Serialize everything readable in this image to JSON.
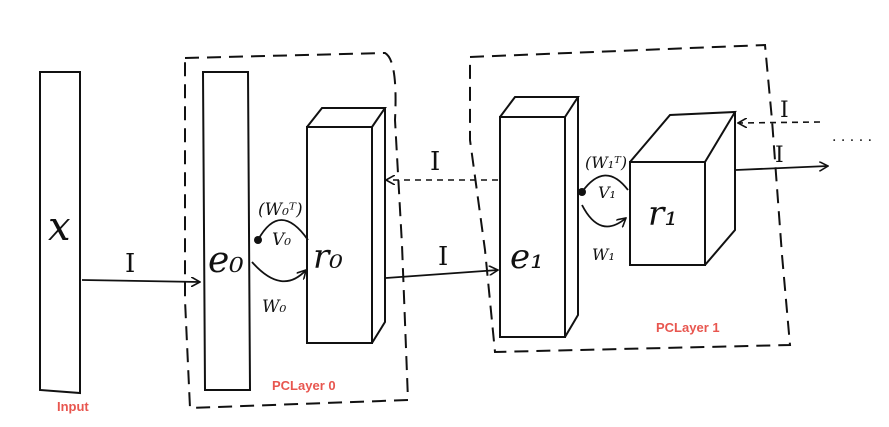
{
  "labels": {
    "input": "Input",
    "pclayer0": "PCLayer 0",
    "pclayer1": "PCLayer 1"
  },
  "symbols": {
    "x": "x",
    "e0": "e₀",
    "r0": "r₀",
    "v0": "V₀",
    "w0": "W₀",
    "w0t": "(W₀ᵀ)",
    "e1": "e₁",
    "r1": "r₁",
    "v1": "V₁",
    "w1": "W₁",
    "w1t": "(W₁ᵀ)",
    "i": "I",
    "dots": "· · · · ·"
  },
  "colors": {
    "ink": "#111111",
    "label": "#e8564f"
  }
}
